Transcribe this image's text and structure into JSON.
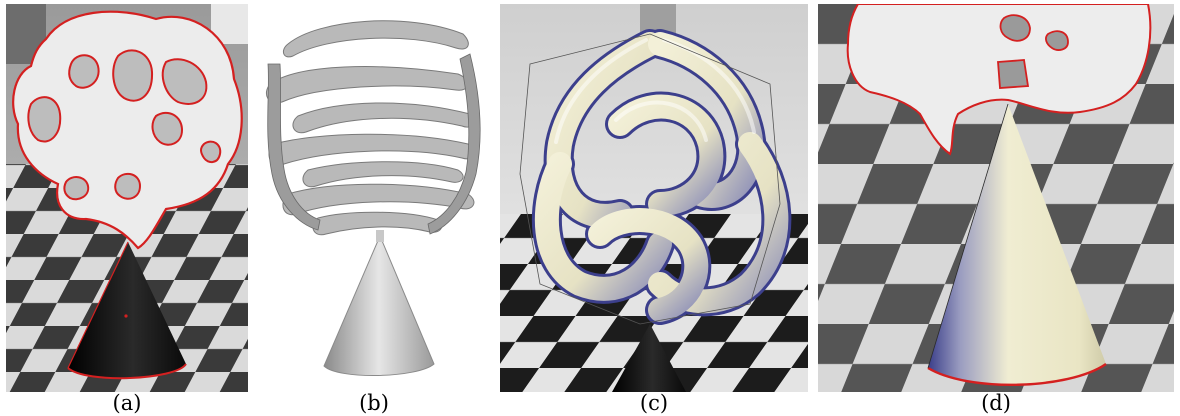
{
  "figure": {
    "panels": [
      {
        "id": "a",
        "caption": "(a)"
      },
      {
        "id": "b",
        "caption": "(b)"
      },
      {
        "id": "c",
        "caption": "(c)"
      },
      {
        "id": "d",
        "caption": "(d)"
      }
    ]
  },
  "colors": {
    "contour_red": "#d42020",
    "cone_dark": "#1a1a1a",
    "tube_cream": "#efeccf",
    "tube_blue": "#3c3f8c",
    "mesh_gray": "#b8b8b8",
    "checker_dark": "#2c2c2c",
    "checker_light": "#dcdcdc"
  }
}
